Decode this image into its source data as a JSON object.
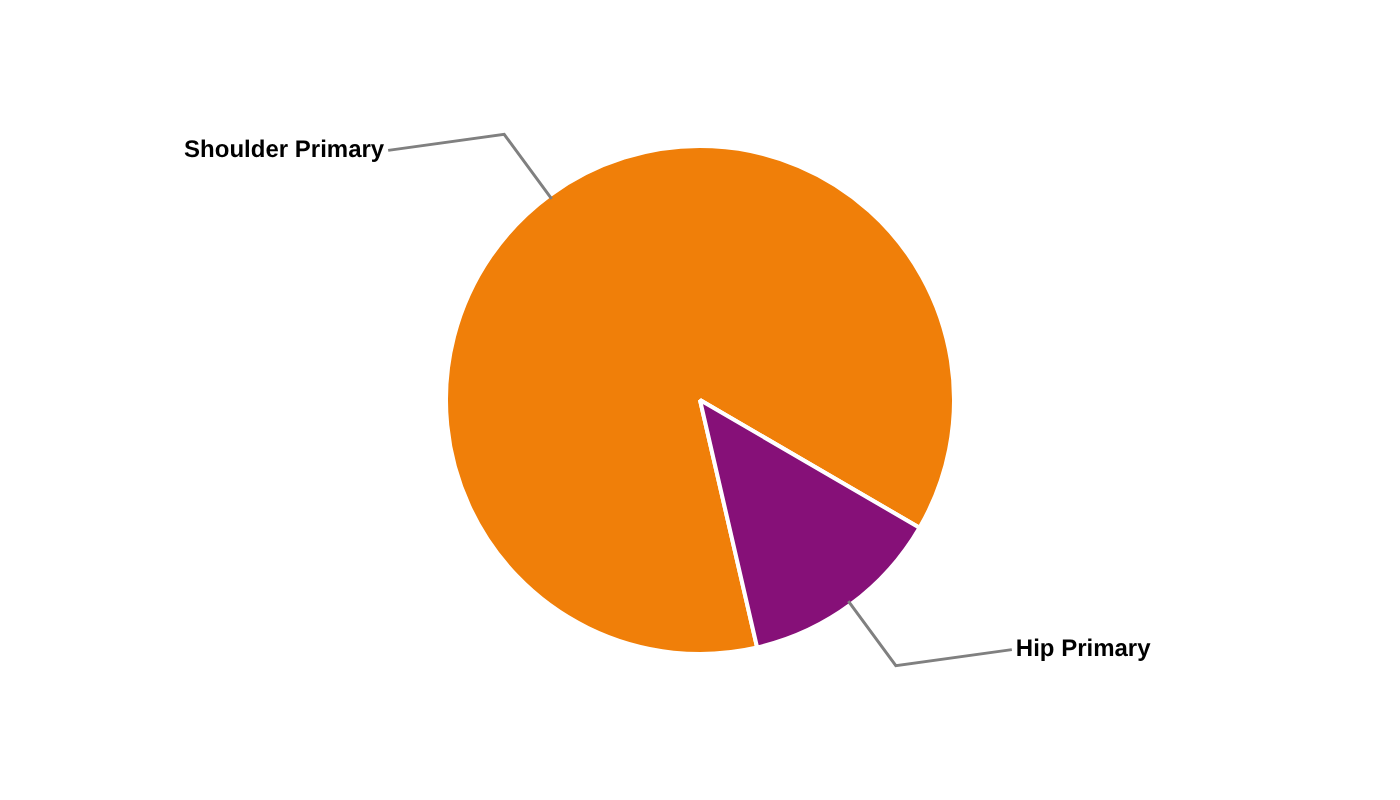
{
  "chart_data": {
    "type": "pie",
    "categories": [
      "Shoulder Primary",
      "Hip Primary"
    ],
    "values": [
      87,
      13
    ],
    "colors": [
      "#f07f09",
      "#861078"
    ]
  }
}
